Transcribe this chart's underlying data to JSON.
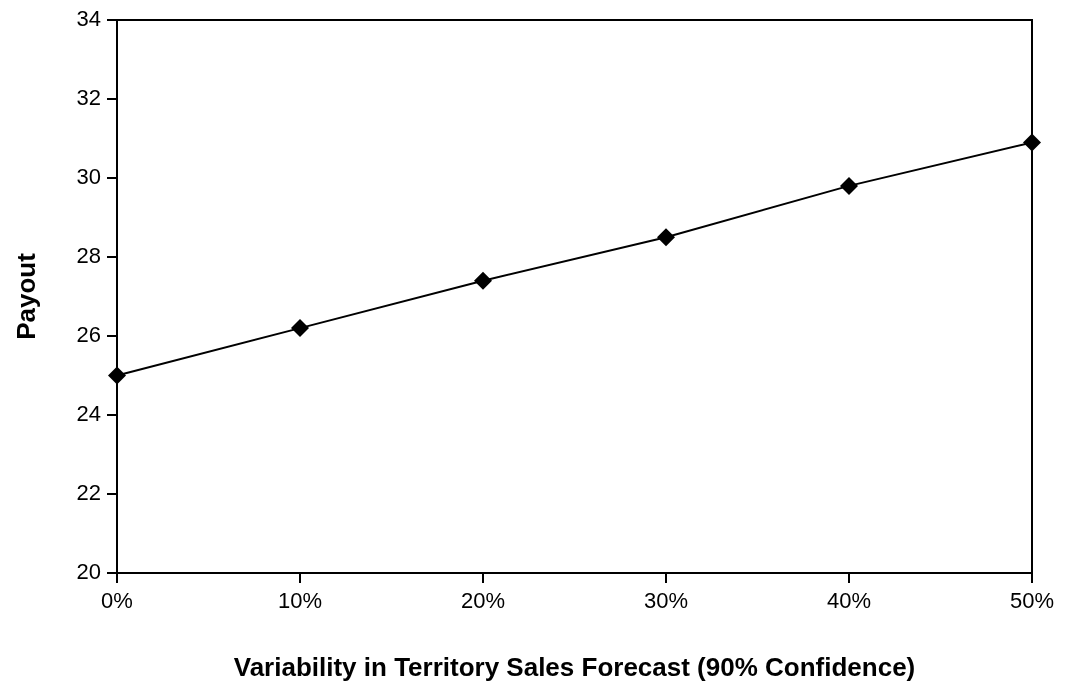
{
  "chart_data": {
    "type": "line",
    "xlabel": "Variability in Territory Sales Forecast (90% Confidence)",
    "ylabel": "Payout",
    "categories": [
      "0%",
      "10%",
      "20%",
      "30%",
      "40%",
      "50%"
    ],
    "series": [
      {
        "color": "#000000",
        "values": [
          25.0,
          26.2,
          27.4,
          28.5,
          29.8,
          30.9
        ]
      }
    ],
    "ylim": [
      20,
      34
    ],
    "yticks": [
      20,
      22,
      24,
      26,
      28,
      30,
      32,
      34
    ],
    "grid": false,
    "legend": false,
    "marker": "diamond",
    "line_style": "solid"
  }
}
